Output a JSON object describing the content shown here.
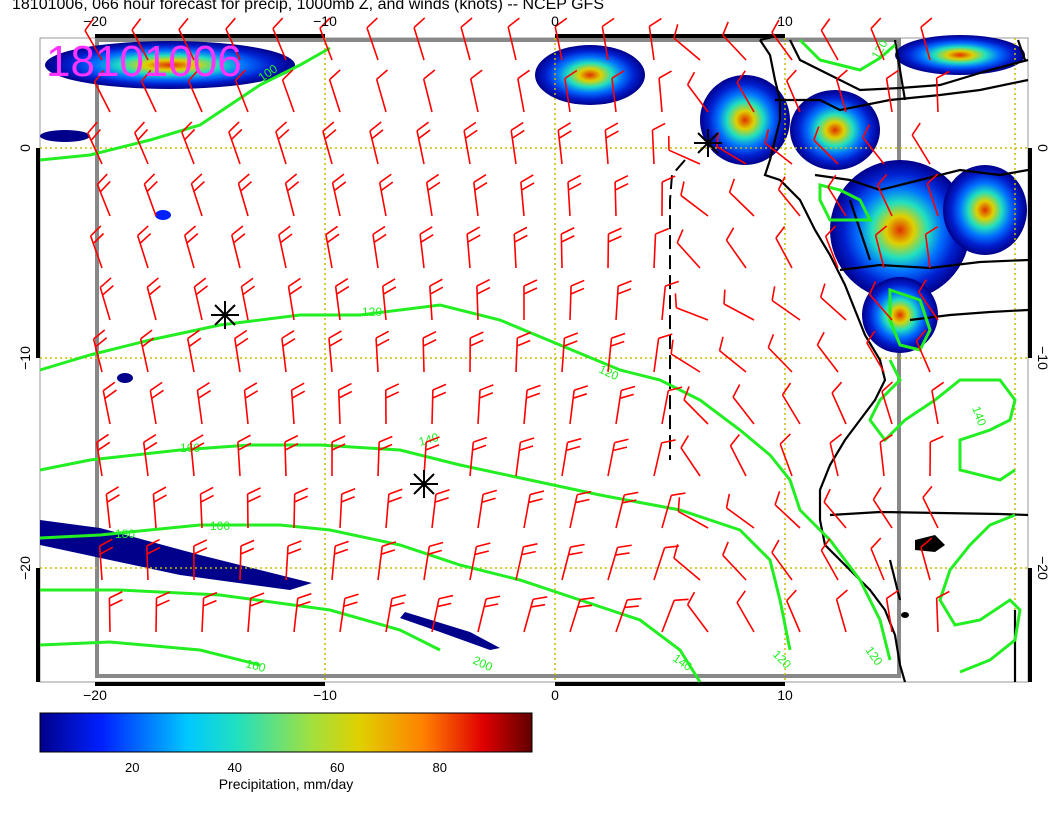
{
  "title": "18101006, 066 hour forecast for precip, 1000mb Z, and winds (knots) -- NCEP GFS",
  "stamp": "18101006",
  "axes": {
    "top_ticks": [
      "−20",
      "−10",
      "0",
      "10"
    ],
    "bottom_ticks": [
      "−20",
      "−10",
      "0",
      "10"
    ],
    "left_ticks": [
      "0",
      "−10",
      "−20"
    ],
    "right_ticks": [
      "0",
      "−10",
      "−20"
    ]
  },
  "contours": {
    "color": "#22ee22",
    "labels": [
      "100",
      "120",
      "120",
      "140",
      "160",
      "160",
      "180",
      "200",
      "160",
      "140",
      "120",
      "120",
      "120",
      "140"
    ]
  },
  "wind_color": "#ff0000",
  "colorbar": {
    "label": "Precipitation, mm/day",
    "ticks": [
      {
        "value": 20,
        "label": "20"
      },
      {
        "value": 40,
        "label": "40"
      },
      {
        "value": 60,
        "label": "60"
      },
      {
        "value": 80,
        "label": "80"
      }
    ],
    "min": 2,
    "max": 98,
    "colors": [
      "#00008a",
      "#0020ff",
      "#00c8ff",
      "#20e0c0",
      "#a0e040",
      "#e0d000",
      "#ff8000",
      "#e00000",
      "#600000"
    ]
  }
}
